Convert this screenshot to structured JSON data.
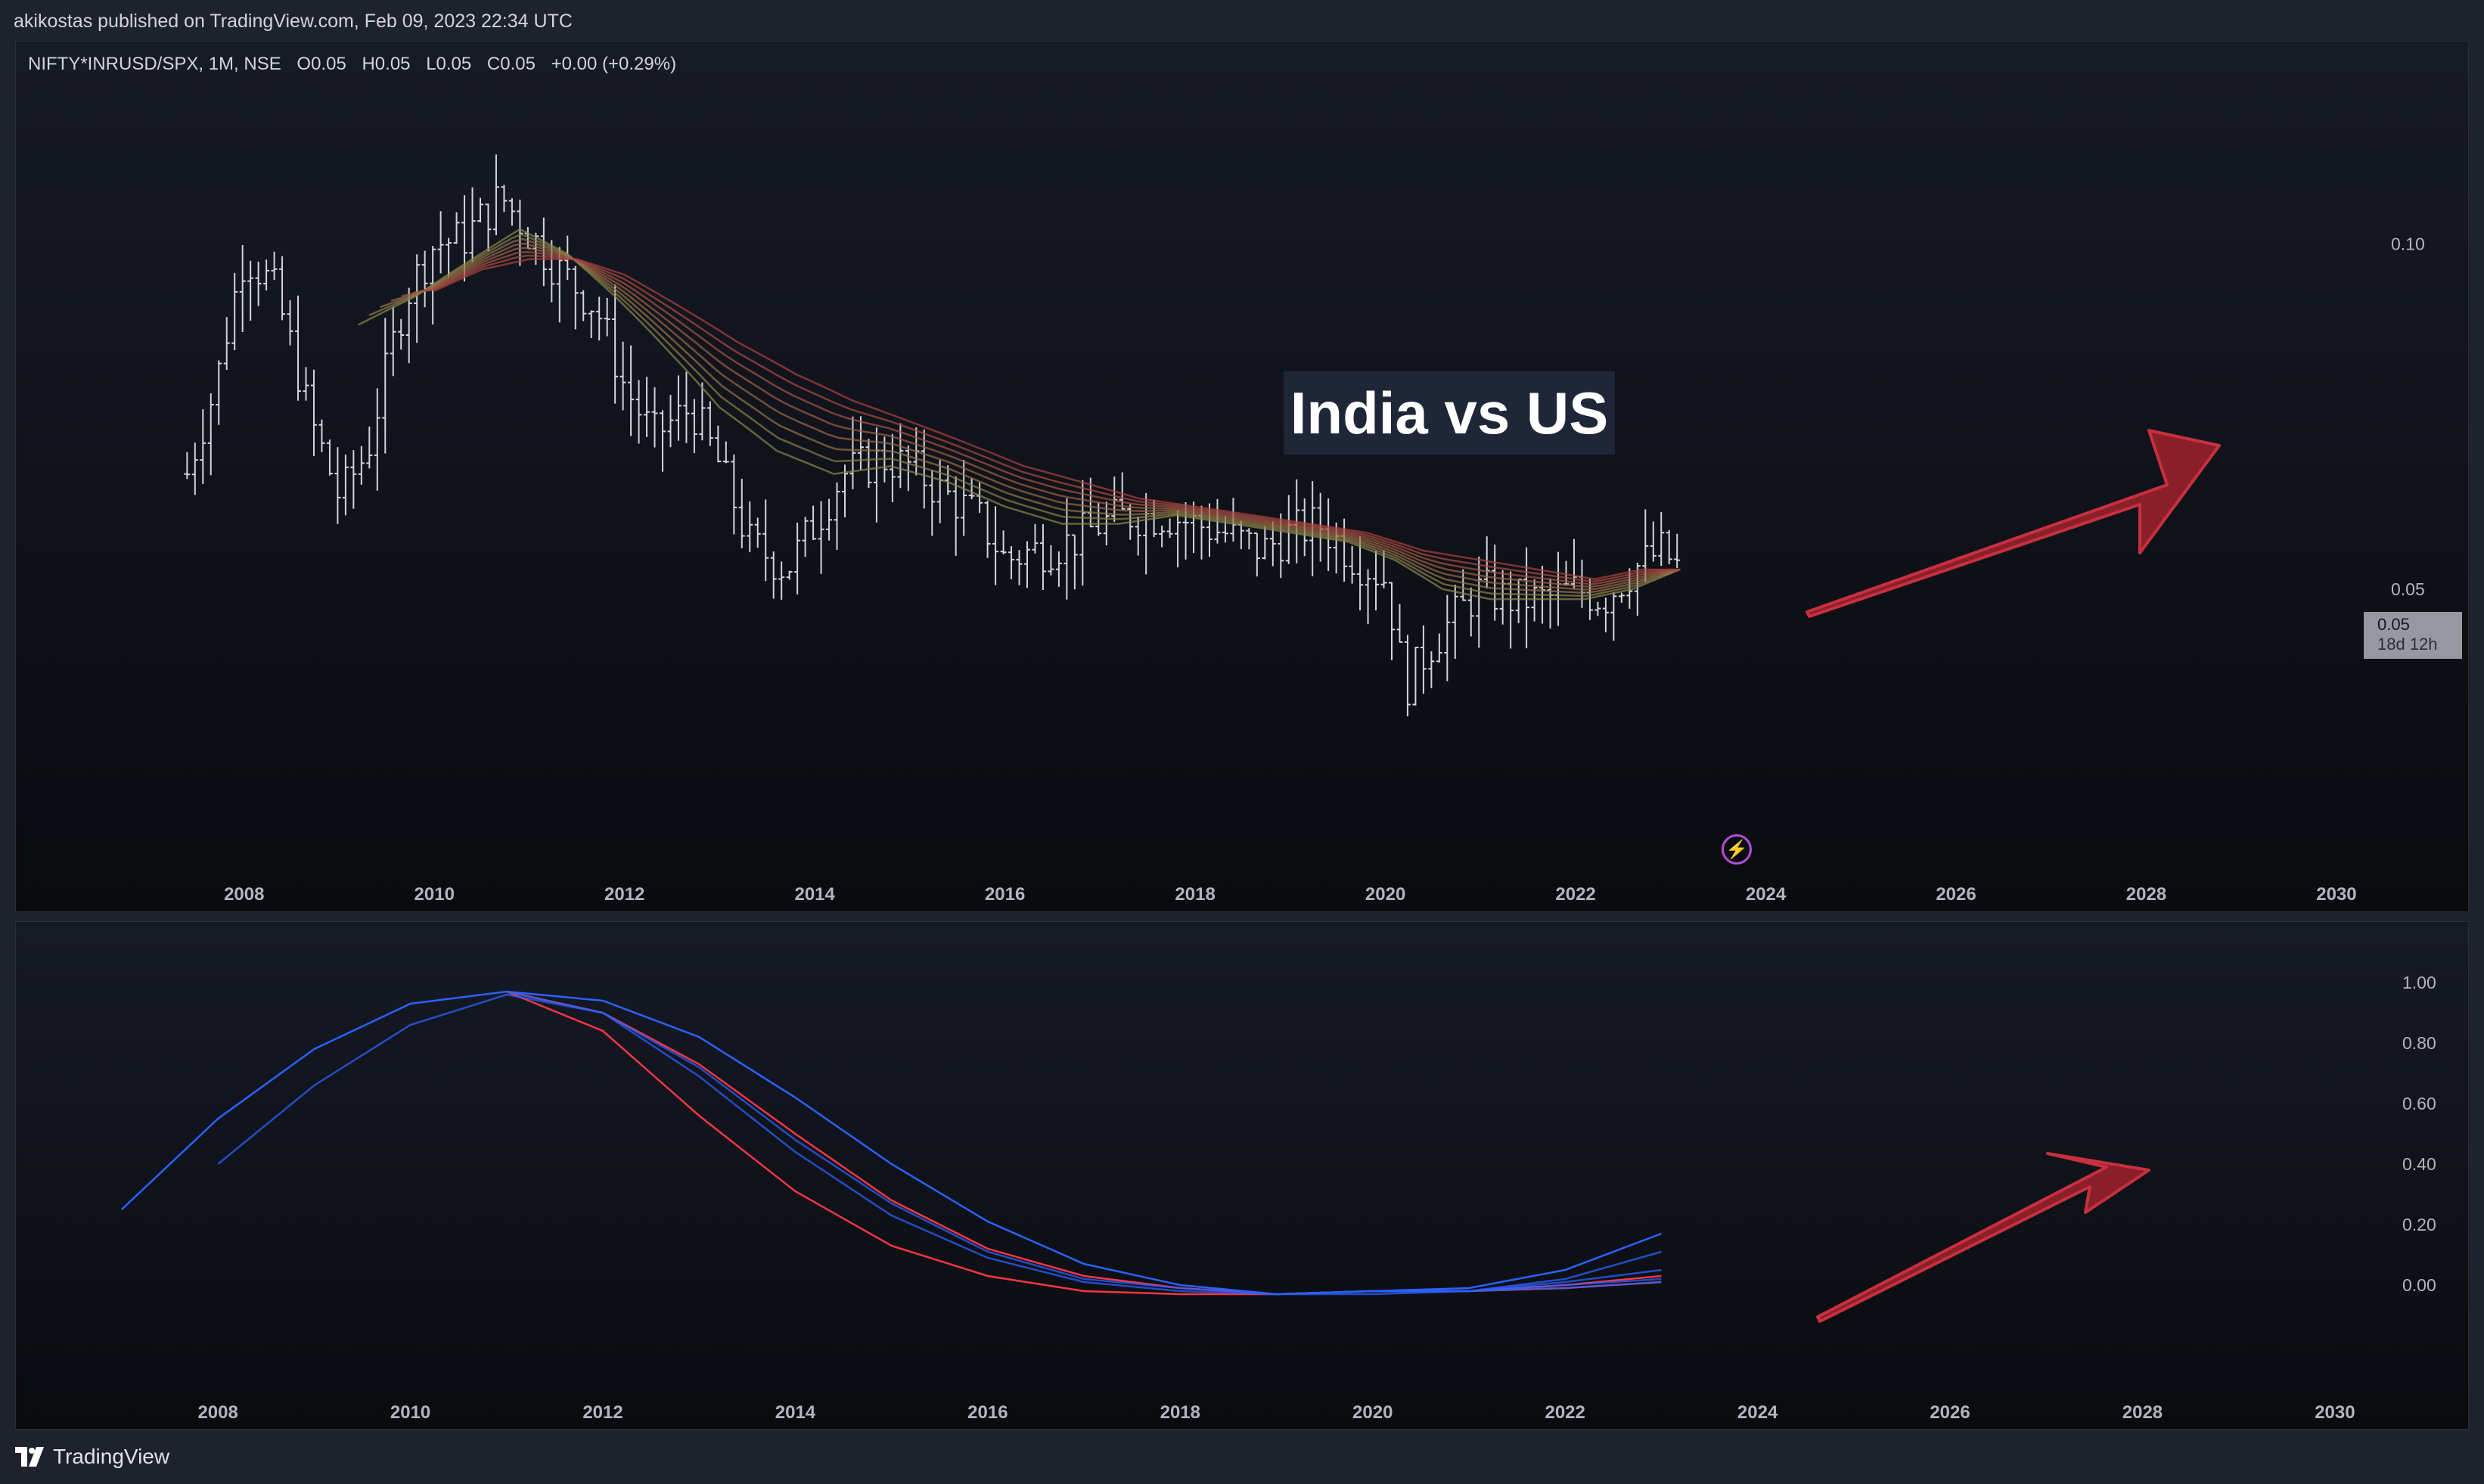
{
  "header": {
    "published_text": "akikostas published on TradingView.com, Feb 09, 2023 22:34 UTC"
  },
  "legend": {
    "symbol": "NIFTY*INRUSD/SPX, 1M, NSE",
    "open": "O0.05",
    "high": "H0.05",
    "low": "L0.05",
    "close": "C0.05",
    "change": "+0.00 (+0.29%)"
  },
  "annotation": {
    "title": "India vs US"
  },
  "price_tag": {
    "value": "0.05",
    "countdown": "18d 12h"
  },
  "footer": {
    "brand": "TradingView"
  },
  "colors": {
    "background": "#0c0e13",
    "candles": "#d1d4dc",
    "ribbon_fast": "#8a8a4a",
    "ribbon_slow": "#b0403f",
    "osc_red": "#f23645",
    "osc_blue": "#2962ff",
    "arrow_fill": "#8a1f2a",
    "arrow_stroke": "#c8303f"
  },
  "chart_data": [
    {
      "type": "line",
      "subtype": "ohlc-bars-with-ma-ribbon",
      "title": "NIFTY*INRUSD/SPX, 1M, NSE",
      "scale": "log",
      "x_ticks": [
        "2008",
        "2010",
        "2012",
        "2014",
        "2016",
        "2018",
        "2020",
        "2022",
        "2024",
        "2026",
        "2028",
        "2030"
      ],
      "xlim": [
        2005.6,
        2031.4
      ],
      "y_ticks": [
        "0.10",
        "0.05"
      ],
      "ylim": [
        0.03,
        0.135
      ],
      "grid": false,
      "series": [
        {
          "kind": "close",
          "x": [
            2007.4,
            2007.7,
            2008.0,
            2008.3,
            2008.7,
            2009.0,
            2009.3,
            2009.7,
            2010.0,
            2010.3,
            2010.7,
            2011.0,
            2011.3,
            2011.7,
            2012.0,
            2012.3,
            2012.7,
            2013.0,
            2013.3,
            2013.7,
            2014.0,
            2014.3,
            2014.7,
            2015.0,
            2015.3,
            2015.7,
            2016.0,
            2016.3,
            2016.7,
            2017.0,
            2017.3,
            2017.7,
            2018.0,
            2018.3,
            2018.7,
            2019.0,
            2019.3,
            2019.7,
            2020.0,
            2020.2,
            2020.5,
            2020.8,
            2021.0,
            2021.3,
            2021.7,
            2022.0,
            2022.3,
            2022.6,
            2022.9,
            2023.1
          ],
          "values": [
            0.063,
            0.075,
            0.098,
            0.092,
            0.07,
            0.06,
            0.066,
            0.09,
            0.1,
            0.101,
            0.11,
            0.102,
            0.095,
            0.088,
            0.075,
            0.068,
            0.072,
            0.064,
            0.055,
            0.052,
            0.057,
            0.063,
            0.065,
            0.064,
            0.061,
            0.058,
            0.053,
            0.054,
            0.055,
            0.057,
            0.058,
            0.058,
            0.057,
            0.056,
            0.054,
            0.056,
            0.057,
            0.053,
            0.051,
            0.041,
            0.045,
            0.048,
            0.05,
            0.049,
            0.049,
            0.05,
            0.049,
            0.052,
            0.054,
            0.052
          ]
        },
        {
          "kind": "ribbon-fast",
          "x": [
            2009.2,
            2009.8,
            2010.4,
            2010.9,
            2011.4,
            2011.9,
            2012.5,
            2013.0,
            2013.6,
            2014.2,
            2014.8,
            2015.4,
            2016.0,
            2016.6,
            2017.2,
            2017.8,
            2018.4,
            2019.0,
            2019.6,
            2020.1,
            2020.6,
            2021.1,
            2021.6,
            2022.1,
            2022.6,
            2023.1
          ],
          "values": [
            0.085,
            0.09,
            0.097,
            0.103,
            0.098,
            0.09,
            0.08,
            0.072,
            0.066,
            0.063,
            0.064,
            0.062,
            0.059,
            0.057,
            0.057,
            0.058,
            0.057,
            0.056,
            0.055,
            0.053,
            0.05,
            0.049,
            0.049,
            0.049,
            0.05,
            0.052
          ]
        },
        {
          "kind": "ribbon-slow",
          "x": [
            2010.0,
            2010.5,
            2011.0,
            2011.5,
            2012.0,
            2012.6,
            2013.2,
            2013.8,
            2014.4,
            2015.0,
            2015.6,
            2016.2,
            2016.8,
            2017.4,
            2018.0,
            2018.6,
            2019.2,
            2019.8,
            2020.4,
            2021.0,
            2021.6,
            2022.2,
            2022.7,
            2023.1
          ],
          "values": [
            0.091,
            0.095,
            0.097,
            0.097,
            0.094,
            0.088,
            0.082,
            0.077,
            0.073,
            0.07,
            0.067,
            0.064,
            0.062,
            0.06,
            0.059,
            0.058,
            0.057,
            0.056,
            0.054,
            0.053,
            0.052,
            0.051,
            0.052,
            0.052
          ]
        }
      ]
    },
    {
      "type": "line",
      "title": "",
      "x_ticks": [
        "2008",
        "2010",
        "2012",
        "2014",
        "2016",
        "2018",
        "2020",
        "2022",
        "2024",
        "2026",
        "2028",
        "2030"
      ],
      "xlim": [
        2005.9,
        2031.4
      ],
      "y_ticks": [
        "1.00",
        "0.80",
        "0.60",
        "0.40",
        "0.20",
        "0.00"
      ],
      "ylim": [
        -0.2,
        1.1
      ],
      "grid": false,
      "x": [
        2007,
        2008,
        2009,
        2010,
        2011,
        2012,
        2013,
        2014,
        2015,
        2016,
        2017,
        2018,
        2019,
        2020,
        2021,
        2022,
        2023
      ],
      "series": [
        {
          "color": "#f23645",
          "values": [
            null,
            null,
            null,
            null,
            0.97,
            0.84,
            0.56,
            0.31,
            0.13,
            0.03,
            -0.02,
            -0.03,
            -0.03,
            -0.02,
            -0.02,
            -0.01,
            0.01
          ]
        },
        {
          "color": "#f23645",
          "values": [
            null,
            null,
            null,
            null,
            0.97,
            0.9,
            0.73,
            0.5,
            0.28,
            0.12,
            0.03,
            -0.01,
            -0.03,
            -0.02,
            -0.02,
            0.0,
            0.03
          ]
        },
        {
          "color": "#2962ff",
          "values": [
            0.25,
            0.55,
            0.78,
            0.93,
            0.97,
            0.94,
            0.82,
            0.62,
            0.4,
            0.21,
            0.07,
            0.0,
            -0.03,
            -0.02,
            -0.01,
            0.05,
            0.17
          ]
        },
        {
          "color": "#2962ff",
          "values": [
            null,
            0.4,
            0.66,
            0.86,
            0.96,
            0.9,
            0.69,
            0.44,
            0.23,
            0.09,
            0.01,
            -0.02,
            -0.03,
            -0.02,
            -0.02,
            0.02,
            0.11
          ]
        },
        {
          "color": "#2962ff",
          "values": [
            null,
            null,
            null,
            null,
            0.97,
            0.9,
            0.72,
            0.48,
            0.27,
            0.11,
            0.02,
            -0.01,
            -0.03,
            -0.02,
            -0.02,
            0.01,
            0.05
          ]
        },
        {
          "color": "#2962ff",
          "values": [
            null,
            null,
            null,
            null,
            null,
            null,
            null,
            null,
            null,
            null,
            null,
            null,
            -0.03,
            -0.02,
            -0.02,
            0.0,
            0.02
          ]
        },
        {
          "color": "#2962ff",
          "values": [
            null,
            null,
            null,
            null,
            null,
            null,
            null,
            null,
            null,
            null,
            null,
            null,
            -0.03,
            -0.03,
            -0.02,
            -0.01,
            0.01
          ]
        }
      ]
    }
  ]
}
